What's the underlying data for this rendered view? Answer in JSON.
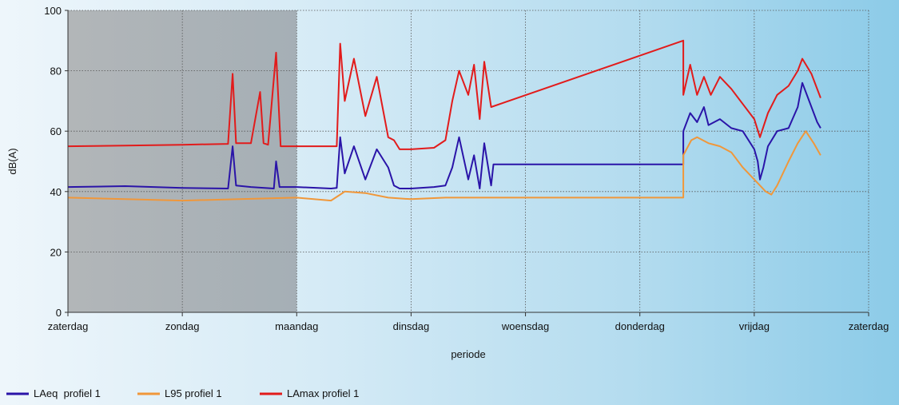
{
  "chart_data": {
    "type": "line",
    "xlabel": "periode",
    "ylabel": "dB(A)",
    "ylim": [
      0,
      100
    ],
    "yticks": [
      0,
      20,
      40,
      60,
      80,
      100
    ],
    "xlim": [
      0,
      7
    ],
    "x_tick_labels": [
      "zaterdag",
      "zondag",
      "maandag",
      "dinsdag",
      "woensdag",
      "donderdag",
      "vrijdag",
      "zaterdag"
    ],
    "weekend_shading": [
      0,
      2
    ],
    "grid": true,
    "legend_position": "bottom-left",
    "colors": {
      "laeq": "#2a14a8",
      "l95": "#f0973a",
      "lamax": "#e21b1b"
    },
    "series": [
      {
        "name": "LAeq  profiel 1",
        "color": "#2a14a8",
        "points": [
          [
            0.0,
            41.5
          ],
          [
            0.5,
            41.8
          ],
          [
            1.0,
            41.2
          ],
          [
            1.4,
            41.0
          ],
          [
            1.44,
            55
          ],
          [
            1.47,
            42
          ],
          [
            1.6,
            41.5
          ],
          [
            1.8,
            41
          ],
          [
            1.82,
            50
          ],
          [
            1.85,
            41.5
          ],
          [
            2.0,
            41.5
          ],
          [
            2.3,
            41
          ],
          [
            2.35,
            41.2
          ],
          [
            2.38,
            58
          ],
          [
            2.42,
            46
          ],
          [
            2.5,
            55
          ],
          [
            2.6,
            44
          ],
          [
            2.7,
            54
          ],
          [
            2.8,
            48
          ],
          [
            2.85,
            42
          ],
          [
            2.9,
            41
          ],
          [
            3.0,
            41
          ],
          [
            3.2,
            41.5
          ],
          [
            3.3,
            42
          ],
          [
            3.36,
            48
          ],
          [
            3.42,
            58
          ],
          [
            3.5,
            44
          ],
          [
            3.55,
            52
          ],
          [
            3.6,
            41
          ],
          [
            3.64,
            56
          ],
          [
            3.7,
            42
          ],
          [
            3.72,
            49
          ],
          [
            3.9,
            49
          ],
          [
            5.0,
            49
          ],
          [
            5.38,
            49
          ],
          [
            5.38,
            60
          ],
          [
            5.44,
            66
          ],
          [
            5.5,
            63
          ],
          [
            5.56,
            68
          ],
          [
            5.6,
            62
          ],
          [
            5.7,
            64
          ],
          [
            5.8,
            61
          ],
          [
            5.9,
            60
          ],
          [
            6.0,
            54
          ],
          [
            6.03,
            50
          ],
          [
            6.05,
            44
          ],
          [
            6.08,
            48
          ],
          [
            6.12,
            55
          ],
          [
            6.2,
            60
          ],
          [
            6.3,
            61
          ],
          [
            6.38,
            68
          ],
          [
            6.42,
            76
          ],
          [
            6.48,
            70
          ],
          [
            6.55,
            63
          ],
          [
            6.58,
            61
          ]
        ]
      },
      {
        "name": "L95 profiel 1",
        "color": "#f0973a",
        "points": [
          [
            0.0,
            38
          ],
          [
            0.5,
            37.5
          ],
          [
            1.0,
            37
          ],
          [
            1.5,
            37.5
          ],
          [
            2.0,
            38
          ],
          [
            2.3,
            37
          ],
          [
            2.38,
            39
          ],
          [
            2.42,
            40
          ],
          [
            2.6,
            39.5
          ],
          [
            2.8,
            38
          ],
          [
            3.0,
            37.5
          ],
          [
            3.3,
            38
          ],
          [
            3.5,
            38
          ],
          [
            3.9,
            38
          ],
          [
            5.0,
            38
          ],
          [
            5.38,
            38
          ],
          [
            5.38,
            52
          ],
          [
            5.45,
            57
          ],
          [
            5.5,
            58
          ],
          [
            5.6,
            56
          ],
          [
            5.7,
            55
          ],
          [
            5.8,
            53
          ],
          [
            5.9,
            48
          ],
          [
            6.0,
            44
          ],
          [
            6.1,
            40
          ],
          [
            6.15,
            39
          ],
          [
            6.2,
            42
          ],
          [
            6.3,
            50
          ],
          [
            6.38,
            56
          ],
          [
            6.45,
            60
          ],
          [
            6.52,
            56
          ],
          [
            6.58,
            52
          ]
        ]
      },
      {
        "name": "LAmax profiel 1",
        "color": "#e21b1b",
        "points": [
          [
            0.0,
            55
          ],
          [
            0.5,
            55.2
          ],
          [
            1.0,
            55.5
          ],
          [
            1.4,
            55.8
          ],
          [
            1.44,
            79
          ],
          [
            1.47,
            56
          ],
          [
            1.6,
            56
          ],
          [
            1.68,
            73
          ],
          [
            1.71,
            56
          ],
          [
            1.75,
            55.5
          ],
          [
            1.82,
            86
          ],
          [
            1.86,
            55
          ],
          [
            2.0,
            55
          ],
          [
            2.2,
            55
          ],
          [
            2.35,
            55
          ],
          [
            2.38,
            89
          ],
          [
            2.42,
            70
          ],
          [
            2.5,
            84
          ],
          [
            2.6,
            65
          ],
          [
            2.7,
            78
          ],
          [
            2.8,
            58
          ],
          [
            2.85,
            57
          ],
          [
            2.9,
            54
          ],
          [
            3.0,
            54
          ],
          [
            3.2,
            54.5
          ],
          [
            3.3,
            57
          ],
          [
            3.36,
            70
          ],
          [
            3.42,
            80
          ],
          [
            3.5,
            72
          ],
          [
            3.55,
            82
          ],
          [
            3.6,
            64
          ],
          [
            3.64,
            83
          ],
          [
            3.7,
            68
          ],
          [
            5.38,
            90
          ],
          [
            5.38,
            72
          ],
          [
            5.44,
            82
          ],
          [
            5.5,
            72
          ],
          [
            5.56,
            78
          ],
          [
            5.62,
            72
          ],
          [
            5.7,
            78
          ],
          [
            5.8,
            74
          ],
          [
            5.9,
            69
          ],
          [
            6.0,
            64
          ],
          [
            6.05,
            58
          ],
          [
            6.12,
            66
          ],
          [
            6.2,
            72
          ],
          [
            6.3,
            75
          ],
          [
            6.38,
            80
          ],
          [
            6.42,
            84
          ],
          [
            6.5,
            79
          ],
          [
            6.58,
            71
          ]
        ]
      }
    ]
  }
}
